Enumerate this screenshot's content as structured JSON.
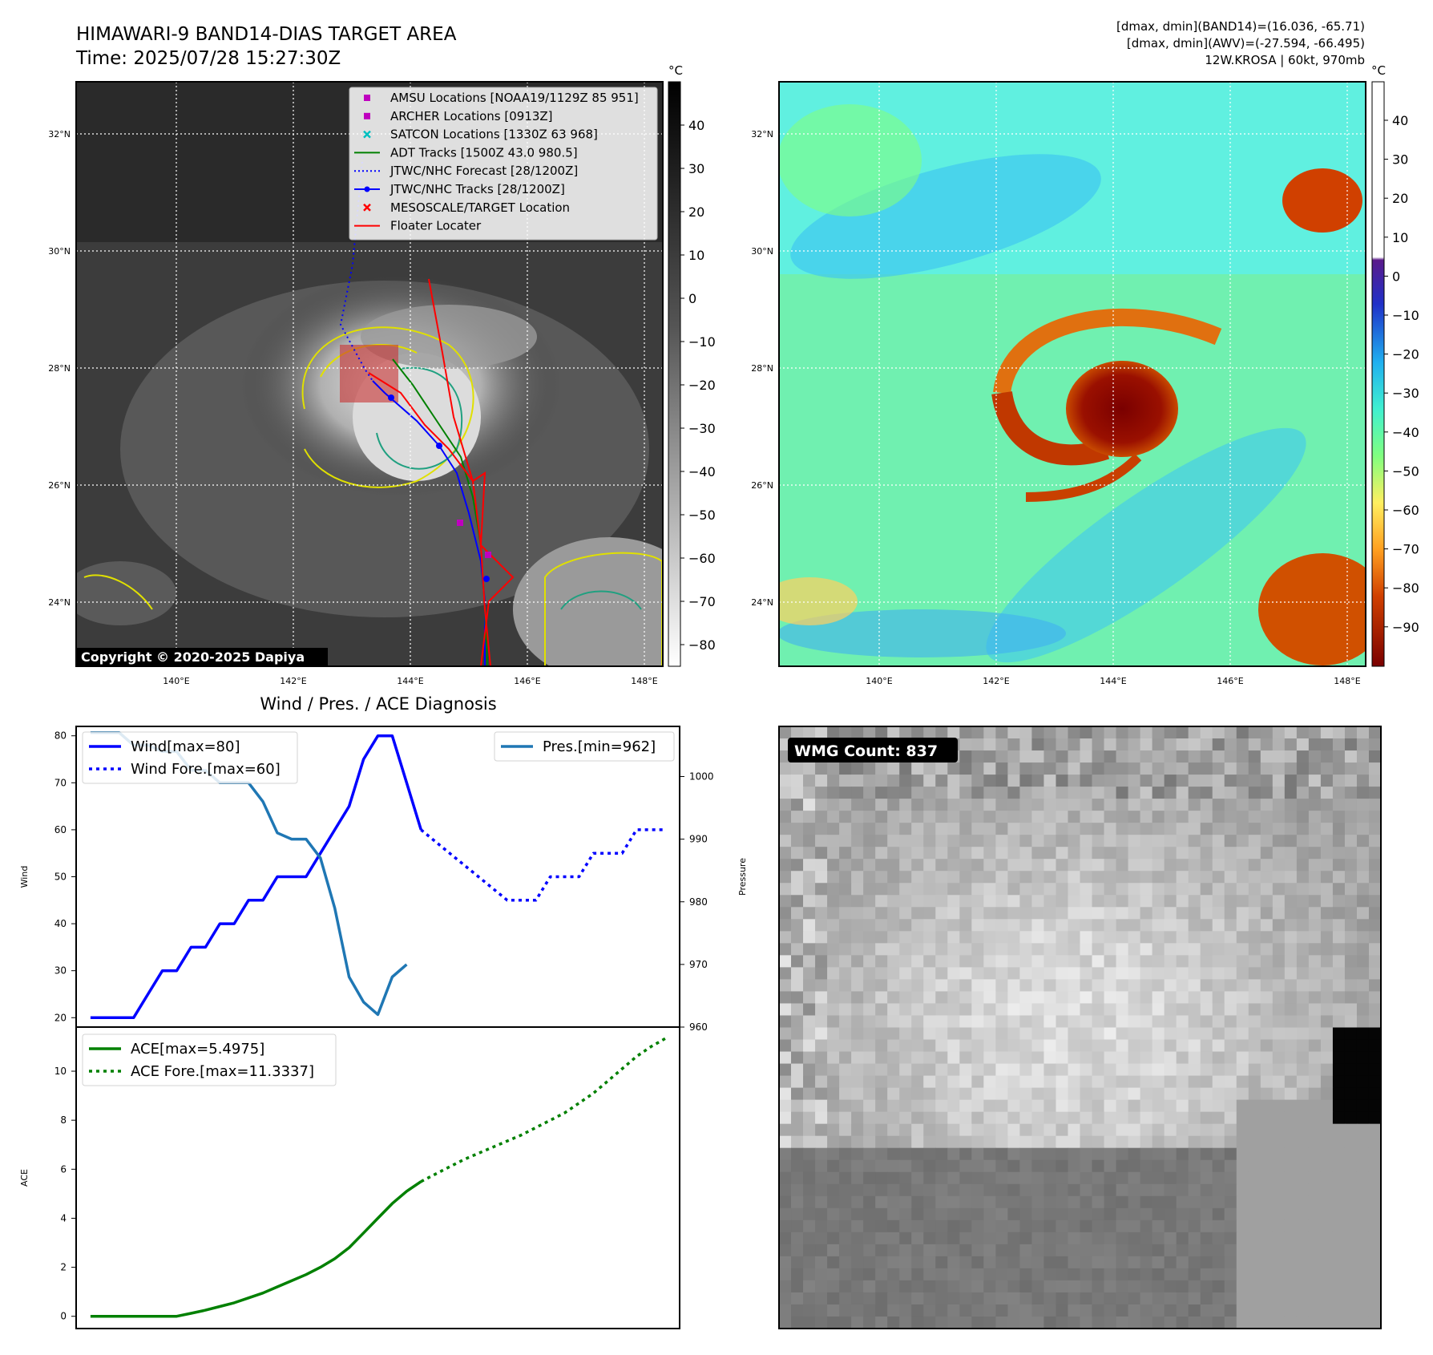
{
  "header": {
    "title": "HIMAWARI-9 BAND14-DIAS TARGET AREA",
    "time": "Time: 2025/07/28 15:27:30Z",
    "info_line1": "[dmax, dmin](BAND14)=(16.036, -65.71)",
    "info_line2": "[dmax, dmin](AWV)=(-27.594, -66.495)",
    "info_line3": "12W.KROSA | 60kt, 970mb"
  },
  "copyright": "Copyright © 2020-2025 Dapiya",
  "map_axes": {
    "lon_ticks": [
      "140°E",
      "142°E",
      "144°E",
      "146°E",
      "148°E"
    ],
    "lat_ticks": [
      "32°N",
      "30°N",
      "28°N",
      "26°N",
      "24°N"
    ]
  },
  "colorbar_ir": {
    "unit": "°C",
    "ticks": [
      "40",
      "30",
      "20",
      "10",
      "0",
      "−10",
      "−20",
      "−30",
      "−40",
      "−50",
      "−60",
      "−70",
      "−80"
    ]
  },
  "colorbar_wv": {
    "unit": "°C",
    "ticks": [
      "40",
      "30",
      "20",
      "10",
      "0",
      "−10",
      "−20",
      "−30",
      "−40",
      "−50",
      "−60",
      "−70",
      "−80",
      "−90"
    ]
  },
  "legend": {
    "items": [
      {
        "label": "AMSU Locations [NOAA19/1129Z 85 951]",
        "color": "#bf00bf",
        "marker": "square"
      },
      {
        "label": "ARCHER Locations [0913Z]",
        "color": "#bf00bf",
        "marker": "square"
      },
      {
        "label": "SATCON Locations [1330Z 63 968]",
        "color": "#00bfbf",
        "marker": "x"
      },
      {
        "label": "ADT Tracks [1500Z 43.0 980.5]",
        "color": "#008000",
        "marker": "line"
      },
      {
        "label": "JTWC/NHC Forecast [28/1200Z]",
        "color": "#0000ff",
        "marker": "dotted"
      },
      {
        "label": "JTWC/NHC Tracks [28/1200Z]",
        "color": "#0000ff",
        "marker": "line-dot"
      },
      {
        "label": "MESOSCALE/TARGET Location",
        "color": "#ff0000",
        "marker": "x"
      },
      {
        "label": "Floater Locater",
        "color": "#ff0000",
        "marker": "line"
      }
    ]
  },
  "wmg": {
    "label": "WMG Count: 837"
  },
  "chart_data": [
    {
      "type": "line",
      "title": "Wind / Pres. / ACE Diagnosis",
      "ylabel": "Wind",
      "ylabel_right": "Pressure",
      "ylim": [
        18,
        82
      ],
      "ylim_right": [
        960,
        1008
      ],
      "y_ticks": [
        20,
        30,
        40,
        50,
        60,
        70,
        80
      ],
      "y_ticks_right": [
        960,
        970,
        980,
        990,
        1000
      ],
      "legend_left": [
        "Wind[max=80]",
        "Wind Fore.[max=60]"
      ],
      "legend_right": [
        "Pres.[min=962]"
      ],
      "series": [
        {
          "name": "Wind[max=80]",
          "color": "#0000ff",
          "style": "solid",
          "axis": "left",
          "x": [
            0,
            1,
            2,
            3,
            4,
            5,
            6,
            7,
            8,
            9,
            10,
            11,
            12,
            13,
            14,
            15,
            16,
            17,
            18,
            19,
            20,
            21,
            22,
            23
          ],
          "values": [
            20,
            20,
            20,
            20,
            25,
            30,
            30,
            35,
            35,
            40,
            40,
            45,
            45,
            50,
            50,
            50,
            55,
            60,
            65,
            75,
            80,
            80,
            70,
            60
          ]
        },
        {
          "name": "Wind Fore.[max=60]",
          "color": "#0000ff",
          "style": "dotted",
          "axis": "left",
          "x": [
            23,
            24,
            25,
            26,
            27,
            28,
            29,
            30,
            31,
            32,
            33,
            34,
            35,
            36,
            37,
            38,
            39,
            40
          ],
          "values": [
            60,
            57.5,
            55,
            52.5,
            50,
            47.5,
            45,
            45,
            45,
            50,
            50,
            50,
            55,
            55,
            55,
            60,
            60,
            60
          ]
        },
        {
          "name": "Pres.[min=962]",
          "color": "#1f77b4",
          "style": "solid",
          "axis": "right",
          "x": [
            0,
            1,
            2,
            3,
            4,
            5,
            6,
            7,
            8,
            9,
            10,
            11,
            12,
            13,
            14,
            15,
            16,
            17,
            18,
            19,
            20,
            21,
            22
          ],
          "values": [
            1007,
            1007,
            1007,
            1005,
            1005,
            1004,
            1004,
            1001,
            1001,
            999,
            999,
            999,
            996,
            991,
            990,
            990,
            987,
            979,
            968,
            964,
            962,
            968,
            970
          ]
        }
      ]
    },
    {
      "type": "line",
      "ylabel": "ACE",
      "ylim": [
        -0.5,
        11.8
      ],
      "y_ticks": [
        0,
        2,
        4,
        6,
        8,
        10
      ],
      "legend": [
        "ACE[max=5.4975]",
        "ACE Fore.[max=11.3337]"
      ],
      "series": [
        {
          "name": "ACE[max=5.4975]",
          "color": "#008000",
          "style": "solid",
          "x": [
            0,
            1,
            2,
            3,
            4,
            5,
            6,
            7,
            8,
            9,
            10,
            11,
            12,
            13,
            14,
            15,
            16,
            17,
            18,
            19,
            20,
            21,
            22,
            23
          ],
          "values": [
            0,
            0,
            0,
            0,
            0,
            0,
            0,
            0.12,
            0.25,
            0.4,
            0.55,
            0.75,
            0.95,
            1.2,
            1.45,
            1.7,
            2.0,
            2.35,
            2.8,
            3.4,
            4.0,
            4.6,
            5.1,
            5.4975
          ]
        },
        {
          "name": "ACE Fore.[max=11.3337]",
          "color": "#008000",
          "style": "dotted",
          "x": [
            23,
            24,
            25,
            26,
            27,
            28,
            29,
            30,
            31,
            32,
            33,
            34,
            35,
            36,
            37,
            38,
            39,
            40
          ],
          "values": [
            5.4975,
            5.8,
            6.1,
            6.4,
            6.65,
            6.9,
            7.15,
            7.4,
            7.7,
            8.0,
            8.3,
            8.7,
            9.1,
            9.6,
            10.1,
            10.6,
            11.0,
            11.3337
          ]
        }
      ]
    }
  ]
}
